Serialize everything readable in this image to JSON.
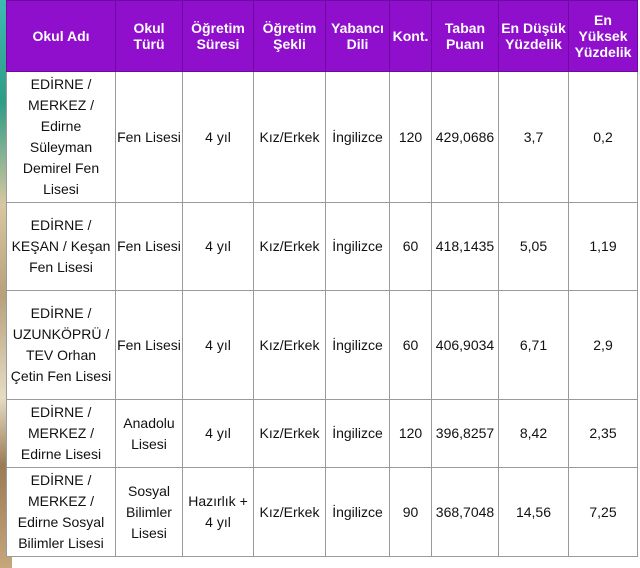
{
  "headers": [
    "Okul Adı",
    "Okul Türü",
    "Öğretim Süresi",
    "Öğretim Şekli",
    "Yabancı Dili",
    "Kont.",
    "Taban Puanı",
    "En Düşük Yüzdelik",
    "En Yüksek Yüzdelik"
  ],
  "rows": [
    [
      "EDİRNE / MERKEZ / Edirne Süleyman Demirel Fen Lisesi",
      "Fen Lisesi",
      "4 yıl",
      "Kız/Erkek",
      "İngilizce",
      "120",
      "429,0686",
      "3,7",
      "0,2"
    ],
    [
      "EDİRNE / KEŞAN / Keşan Fen Lisesi",
      "Fen Lisesi",
      "4 yıl",
      "Kız/Erkek",
      "İngilizce",
      "60",
      "418,1435",
      "5,05",
      "1,19"
    ],
    [
      "EDİRNE / UZUNKÖPRÜ / TEV Orhan Çetin Fen Lisesi",
      "Fen Lisesi",
      "4 yıl",
      "Kız/Erkek",
      "İngilizce",
      "60",
      "406,9034",
      "6,71",
      "2,9"
    ],
    [
      "EDİRNE / MERKEZ / Edirne Lisesi",
      "Anadolu Lisesi",
      "4 yıl",
      "Kız/Erkek",
      "İngilizce",
      "120",
      "396,8257",
      "8,42",
      "2,35"
    ],
    [
      "EDİRNE / MERKEZ / Edirne Sosyal Bilimler Lisesi",
      "Sosyal Bilimler Lisesi",
      "Hazırlık + 4 yıl",
      "Kız/Erkek",
      "İngilizce",
      "90",
      "368,7048",
      "14,56",
      "7,25"
    ]
  ]
}
